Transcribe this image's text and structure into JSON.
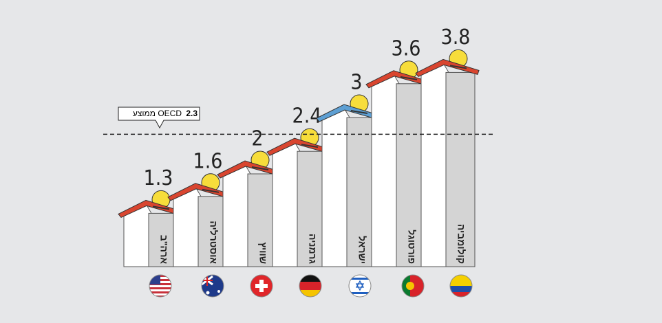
{
  "chart_data": {
    "type": "bar",
    "categories": [
      "ארה\"ב",
      "אוסטרליה",
      "שוויץ",
      "גרמניה",
      "ישראל",
      "פורטוגל",
      "קולומביה"
    ],
    "values": [
      1.3,
      1.6,
      2,
      2.4,
      3,
      3.6,
      3.8
    ],
    "colors": [
      "#d9452f",
      "#d9452f",
      "#d9452f",
      "#d9452f",
      "#5d9fd3",
      "#d9452f",
      "#d9452f"
    ],
    "reference_line": {
      "value": 2.3,
      "label": "ממוצע OECD"
    }
  }
}
